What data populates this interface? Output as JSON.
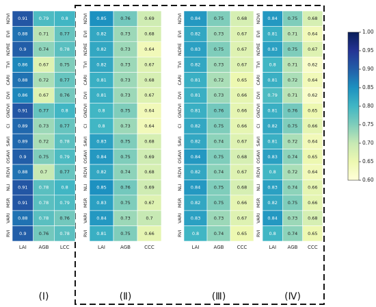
{
  "chart_data": {
    "type": "heatmap",
    "indices": [
      "NDVI",
      "EVI",
      "NDRE",
      "TVI",
      "CARI",
      "DVI",
      "GNDVI",
      "CI",
      "SAVI",
      "OSAVI",
      "RDVI",
      "NLI",
      "MSR",
      "VARI",
      "RVI"
    ],
    "colorbar": {
      "min": 0.6,
      "max": 1.0,
      "ticks": [
        "1.00",
        "0.95",
        "0.90",
        "0.85",
        "0.80",
        "0.75",
        "0.70",
        "0.65",
        "0.60"
      ],
      "colormap": "YlGnBu"
    },
    "panels": [
      {
        "label": "(Ⅰ)",
        "columns": [
          "LAI",
          "AGB",
          "LCC"
        ],
        "values": [
          [
            0.91,
            0.79,
            0.8
          ],
          [
            0.88,
            0.71,
            0.77
          ],
          [
            0.9,
            0.74,
            0.78
          ],
          [
            0.86,
            0.67,
            0.75
          ],
          [
            0.88,
            0.72,
            0.77
          ],
          [
            0.86,
            0.67,
            0.76
          ],
          [
            0.91,
            0.77,
            0.8
          ],
          [
            0.89,
            0.73,
            0.77
          ],
          [
            0.89,
            0.72,
            0.78
          ],
          [
            0.9,
            0.75,
            0.79
          ],
          [
            0.88,
            0.7,
            0.77
          ],
          [
            0.91,
            0.78,
            0.8
          ],
          [
            0.91,
            0.78,
            0.79
          ],
          [
            0.88,
            0.78,
            0.76
          ],
          [
            0.9,
            0.76,
            0.78
          ]
        ]
      },
      {
        "label": "(Ⅱ)",
        "columns": [
          "LAI",
          "AGB",
          "CCC"
        ],
        "values": [
          [
            0.85,
            0.76,
            0.69
          ],
          [
            0.82,
            0.73,
            0.68
          ],
          [
            0.82,
            0.73,
            0.64
          ],
          [
            0.82,
            0.73,
            0.67
          ],
          [
            0.81,
            0.73,
            0.68
          ],
          [
            0.81,
            0.73,
            0.67
          ],
          [
            0.8,
            0.75,
            0.64
          ],
          [
            0.8,
            0.73,
            0.64
          ],
          [
            0.83,
            0.75,
            0.68
          ],
          [
            0.84,
            0.75,
            0.69
          ],
          [
            0.82,
            0.74,
            0.68
          ],
          [
            0.85,
            0.76,
            0.69
          ],
          [
            0.83,
            0.75,
            0.67
          ],
          [
            0.84,
            0.73,
            0.7
          ],
          [
            0.81,
            0.75,
            0.66
          ]
        ]
      },
      {
        "label": "(Ⅲ)",
        "columns": [
          "LAI",
          "AGB",
          "CCC"
        ],
        "values": [
          [
            0.84,
            0.75,
            0.68
          ],
          [
            0.82,
            0.73,
            0.67
          ],
          [
            0.83,
            0.75,
            0.67
          ],
          [
            0.82,
            0.73,
            0.67
          ],
          [
            0.81,
            0.72,
            0.65
          ],
          [
            0.81,
            0.73,
            0.66
          ],
          [
            0.81,
            0.76,
            0.66
          ],
          [
            0.82,
            0.75,
            0.66
          ],
          [
            0.82,
            0.74,
            0.67
          ],
          [
            0.84,
            0.75,
            0.68
          ],
          [
            0.82,
            0.74,
            0.67
          ],
          [
            0.84,
            0.75,
            0.68
          ],
          [
            0.82,
            0.75,
            0.66
          ],
          [
            0.83,
            0.73,
            0.67
          ],
          [
            0.8,
            0.74,
            0.65
          ]
        ]
      },
      {
        "label": "(Ⅳ)",
        "columns": [
          "LAI",
          "AGB",
          "CCC"
        ],
        "values": [
          [
            0.84,
            0.75,
            0.68
          ],
          [
            0.81,
            0.71,
            0.64
          ],
          [
            0.83,
            0.75,
            0.67
          ],
          [
            0.8,
            0.71,
            0.62
          ],
          [
            0.81,
            0.72,
            0.64
          ],
          [
            0.79,
            0.71,
            0.62
          ],
          [
            0.81,
            0.76,
            0.65
          ],
          [
            0.82,
            0.75,
            0.66
          ],
          [
            0.81,
            0.72,
            0.64
          ],
          [
            0.83,
            0.74,
            0.65
          ],
          [
            0.8,
            0.72,
            0.64
          ],
          [
            0.83,
            0.74,
            0.66
          ],
          [
            0.82,
            0.75,
            0.66
          ],
          [
            0.84,
            0.73,
            0.68
          ],
          [
            0.8,
            0.74,
            0.65
          ]
        ]
      }
    ]
  }
}
